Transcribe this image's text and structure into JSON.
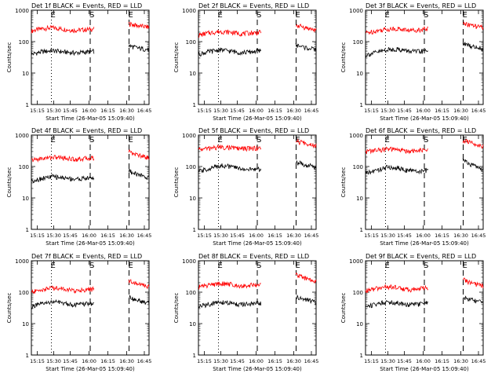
{
  "figure": {
    "background": "#ffffff",
    "events_color": "#000000",
    "lld_color": "#ff0000"
  },
  "chart_data": [
    {
      "type": "line",
      "title": "Det 1f BLACK = Events, RED = LLD",
      "ylabel": "Counts/sec",
      "xlabel": "Start Time (26-Mar-05 15:09:40)",
      "yscale": "log",
      "ylim": [
        1,
        1000
      ],
      "y_ticks": [
        "1",
        "10",
        "100",
        "1000"
      ],
      "x_ticks": [
        "15:15",
        "15:30",
        "15:45",
        "16:00",
        "16:15",
        "16:30",
        "16:45"
      ],
      "markers": [
        {
          "label": "E",
          "line": "dotted"
        },
        {
          "label": "S",
          "line": "dashed"
        },
        {
          "label": "E",
          "line": "dashed"
        }
      ],
      "series": [
        {
          "name": "LLD",
          "values": [
            220,
            260,
            280,
            250,
            230,
            240,
            260,
            600,
            1000,
            380,
            320,
            290
          ]
        },
        {
          "name": "Events",
          "values": [
            40,
            48,
            52,
            47,
            44,
            46,
            50,
            120,
            1000,
            75,
            62,
            55
          ]
        }
      ]
    },
    {
      "type": "line",
      "title": "Det 2f BLACK = Events, RED = LLD",
      "ylabel": "Counts/sec",
      "xlabel": "Start Time (26-Mar-05 15:09:40)",
      "yscale": "log",
      "ylim": [
        1,
        1000
      ],
      "y_ticks": [
        "1",
        "10",
        "100",
        "1000"
      ],
      "x_ticks": [
        "15:15",
        "15:30",
        "15:45",
        "16:00",
        "16:15",
        "16:30",
        "16:45"
      ],
      "markers": [
        {
          "label": "E",
          "line": "dotted"
        },
        {
          "label": "S",
          "line": "dashed"
        },
        {
          "label": "E",
          "line": "dashed"
        }
      ],
      "series": [
        {
          "name": "LLD",
          "values": [
            160,
            190,
            210,
            200,
            180,
            190,
            200,
            500,
            1000,
            350,
            280,
            230
          ]
        },
        {
          "name": "Events",
          "values": [
            40,
            48,
            55,
            50,
            45,
            48,
            52,
            110,
            1000,
            80,
            65,
            55
          ]
        }
      ]
    },
    {
      "type": "line",
      "title": "Det 3f BLACK = Events, RED = LLD",
      "ylabel": "Counts/sec",
      "xlabel": "Start Time (26-Mar-05 15:09:40)",
      "yscale": "log",
      "ylim": [
        1,
        1000
      ],
      "y_ticks": [
        "1",
        "10",
        "100",
        "1000"
      ],
      "x_ticks": [
        "15:15",
        "15:30",
        "15:45",
        "16:00",
        "16:15",
        "16:30",
        "16:45"
      ],
      "markers": [
        {
          "label": "E",
          "line": "dotted"
        },
        {
          "label": "S",
          "line": "dashed"
        },
        {
          "label": "E",
          "line": "dashed"
        }
      ],
      "series": [
        {
          "name": "LLD",
          "values": [
            190,
            220,
            250,
            260,
            230,
            240,
            260,
            700,
            1000,
            400,
            320,
            280
          ]
        },
        {
          "name": "Events",
          "values": [
            38,
            45,
            55,
            58,
            50,
            48,
            52,
            130,
            1000,
            90,
            70,
            60
          ]
        }
      ]
    },
    {
      "type": "line",
      "title": "Det 4f BLACK = Events, RED = LLD",
      "ylabel": "Counts/sec",
      "xlabel": "Start Time (26-Mar-05 15:09:40)",
      "yscale": "log",
      "ylim": [
        1,
        1000
      ],
      "y_ticks": [
        "1",
        "10",
        "100",
        "1000"
      ],
      "x_ticks": [
        "15:15",
        "15:30",
        "15:45",
        "16:00",
        "16:15",
        "16:30",
        "16:45"
      ],
      "markers": [
        {
          "label": "E",
          "line": "dotted"
        },
        {
          "label": "S",
          "line": "dashed"
        },
        {
          "label": "E",
          "line": "dashed"
        }
      ],
      "series": [
        {
          "name": "LLD",
          "values": [
            160,
            180,
            200,
            190,
            170,
            180,
            190,
            600,
            1000,
            300,
            230,
            190
          ]
        },
        {
          "name": "Events",
          "values": [
            35,
            42,
            48,
            44,
            40,
            42,
            45,
            100,
            1000,
            75,
            55,
            45
          ]
        }
      ]
    },
    {
      "type": "line",
      "title": "Det 5f BLACK = Events, RED = LLD",
      "ylabel": "Counts/sec",
      "xlabel": "Start Time (26-Mar-05 15:09:40)",
      "yscale": "log",
      "ylim": [
        1,
        1000
      ],
      "y_ticks": [
        "1",
        "10",
        "100",
        "1000"
      ],
      "x_ticks": [
        "15:15",
        "15:30",
        "15:45",
        "16:00",
        "16:15",
        "16:30",
        "16:45"
      ],
      "markers": [
        {
          "label": "E",
          "line": "dotted"
        },
        {
          "label": "S",
          "line": "dashed"
        },
        {
          "label": "E",
          "line": "dashed"
        }
      ],
      "series": [
        {
          "name": "LLD",
          "values": [
            350,
            380,
            420,
            400,
            370,
            380,
            400,
            900,
            1000,
            650,
            550,
            470
          ]
        },
        {
          "name": "Events",
          "values": [
            70,
            85,
            110,
            100,
            85,
            80,
            85,
            200,
            1000,
            140,
            115,
            95
          ]
        }
      ]
    },
    {
      "type": "line",
      "title": "Det 6f BLACK = Events, RED = LLD",
      "ylabel": "Counts/sec",
      "xlabel": "Start Time (26-Mar-05 15:09:40)",
      "yscale": "log",
      "ylim": [
        1,
        1000
      ],
      "y_ticks": [
        "1",
        "10",
        "100",
        "1000"
      ],
      "x_ticks": [
        "15:15",
        "15:30",
        "15:45",
        "16:00",
        "16:15",
        "16:30",
        "16:45"
      ],
      "markers": [
        {
          "label": "E",
          "line": "dotted"
        },
        {
          "label": "S",
          "line": "dashed"
        },
        {
          "label": "E",
          "line": "dashed"
        }
      ],
      "series": [
        {
          "name": "LLD",
          "values": [
            300,
            330,
            360,
            340,
            310,
            320,
            340,
            900,
            1000,
            700,
            550,
            450
          ]
        },
        {
          "name": "Events",
          "values": [
            60,
            75,
            95,
            90,
            75,
            70,
            75,
            180,
            1000,
            170,
            110,
            80
          ]
        }
      ]
    },
    {
      "type": "line",
      "title": "Det 7f BLACK = Events, RED = LLD",
      "ylabel": "Counts/sec",
      "xlabel": "Start Time (26-Mar-05 15:09:40)",
      "yscale": "log",
      "ylim": [
        1,
        1000
      ],
      "y_ticks": [
        "1",
        "10",
        "100",
        "1000"
      ],
      "x_ticks": [
        "15:15",
        "15:30",
        "15:45",
        "16:00",
        "16:15",
        "16:30",
        "16:45"
      ],
      "markers": [
        {
          "label": "E",
          "line": "dotted"
        },
        {
          "label": "S",
          "line": "dashed"
        },
        {
          "label": "E",
          "line": "dashed"
        }
      ],
      "series": [
        {
          "name": "LLD",
          "values": [
            100,
            120,
            140,
            130,
            110,
            120,
            130,
            400,
            1000,
            250,
            180,
            150
          ]
        },
        {
          "name": "Events",
          "values": [
            35,
            42,
            50,
            45,
            40,
            42,
            45,
            90,
            1000,
            70,
            55,
            45
          ]
        }
      ]
    },
    {
      "type": "line",
      "title": "Det 8f BLACK = Events, RED = LLD",
      "ylabel": "Counts/sec",
      "xlabel": "Start Time (26-Mar-05 15:09:40)",
      "yscale": "log",
      "ylim": [
        1,
        1000
      ],
      "y_ticks": [
        "1",
        "10",
        "100",
        "1000"
      ],
      "x_ticks": [
        "15:15",
        "15:30",
        "15:45",
        "16:00",
        "16:15",
        "16:30",
        "16:45"
      ],
      "markers": [
        {
          "label": "E",
          "line": "dotted"
        },
        {
          "label": "S",
          "line": "dashed"
        },
        {
          "label": "E",
          "line": "dashed"
        }
      ],
      "series": [
        {
          "name": "LLD",
          "values": [
            150,
            170,
            190,
            180,
            160,
            170,
            180,
            550,
            1000,
            380,
            280,
            220
          ]
        },
        {
          "name": "Events",
          "values": [
            35,
            42,
            48,
            45,
            40,
            42,
            45,
            95,
            1000,
            75,
            58,
            48
          ]
        }
      ]
    },
    {
      "type": "line",
      "title": "Det 9f BLACK = Events, RED = LLD",
      "ylabel": "Counts/sec",
      "xlabel": "Start Time (26-Mar-05 15:09:40)",
      "yscale": "log",
      "ylim": [
        1,
        1000
      ],
      "y_ticks": [
        "1",
        "10",
        "100",
        "1000"
      ],
      "x_ticks": [
        "15:15",
        "15:30",
        "15:45",
        "16:00",
        "16:15",
        "16:30",
        "16:45"
      ],
      "markers": [
        {
          "label": "E",
          "line": "dotted"
        },
        {
          "label": "S",
          "line": "dashed"
        },
        {
          "label": "E",
          "line": "dashed"
        }
      ],
      "series": [
        {
          "name": "LLD",
          "values": [
            110,
            130,
            150,
            140,
            120,
            130,
            140,
            450,
            1000,
            260,
            190,
            160
          ]
        },
        {
          "name": "Events",
          "values": [
            35,
            42,
            50,
            46,
            40,
            42,
            46,
            95,
            1000,
            72,
            56,
            46
          ]
        }
      ]
    }
  ]
}
